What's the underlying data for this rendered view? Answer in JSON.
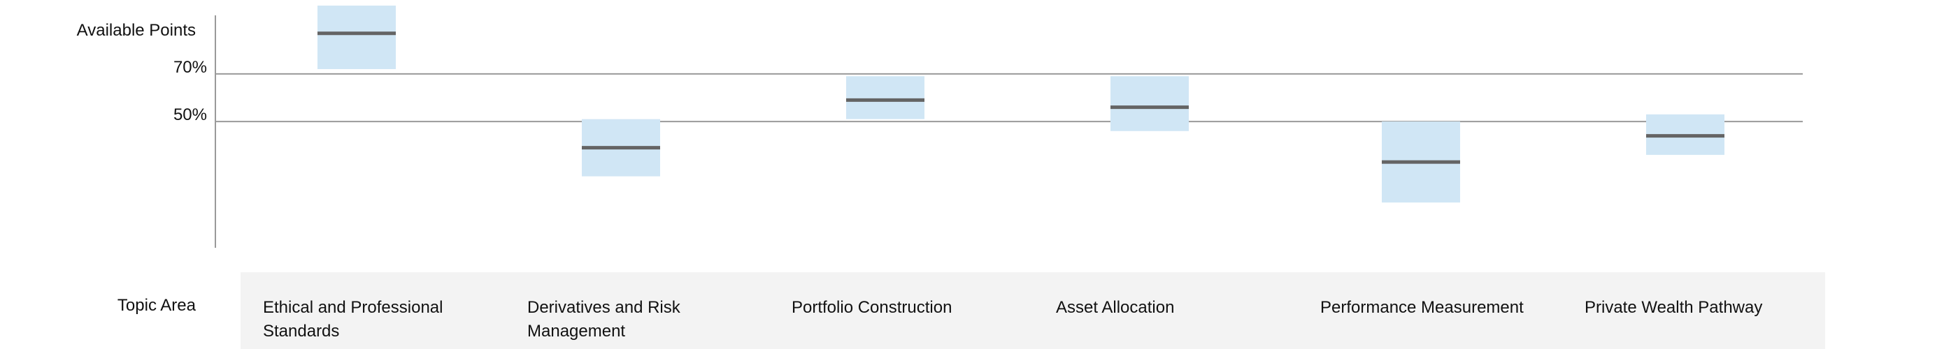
{
  "chart_data": {
    "type": "box",
    "y_axis_title": "Available Points",
    "x_axis_title": "Topic Area",
    "reference_lines": [
      {
        "label": "70%",
        "value": 70
      },
      {
        "label": "50%",
        "value": 50
      }
    ],
    "ylim": [
      -3,
      101
    ],
    "categories": [
      "Ethical and Professional Standards",
      "Derivatives and Risk Management",
      "Portfolio Construction",
      "Asset Allocation",
      "Performance Measurement",
      "Private Wealth Pathway"
    ],
    "ranges": [
      {
        "low": 72,
        "mid": 87,
        "high": 102
      },
      {
        "low": 27,
        "mid": 39,
        "high": 51
      },
      {
        "low": 51,
        "mid": 59,
        "high": 69
      },
      {
        "low": 46,
        "mid": 56,
        "high": 69
      },
      {
        "low": 16,
        "mid": 33,
        "high": 50
      },
      {
        "low": 36,
        "mid": 44,
        "high": 53
      }
    ],
    "colors": {
      "range": "#d0e6f5",
      "marker": "#646464",
      "axis": "#9a9a9a"
    }
  }
}
